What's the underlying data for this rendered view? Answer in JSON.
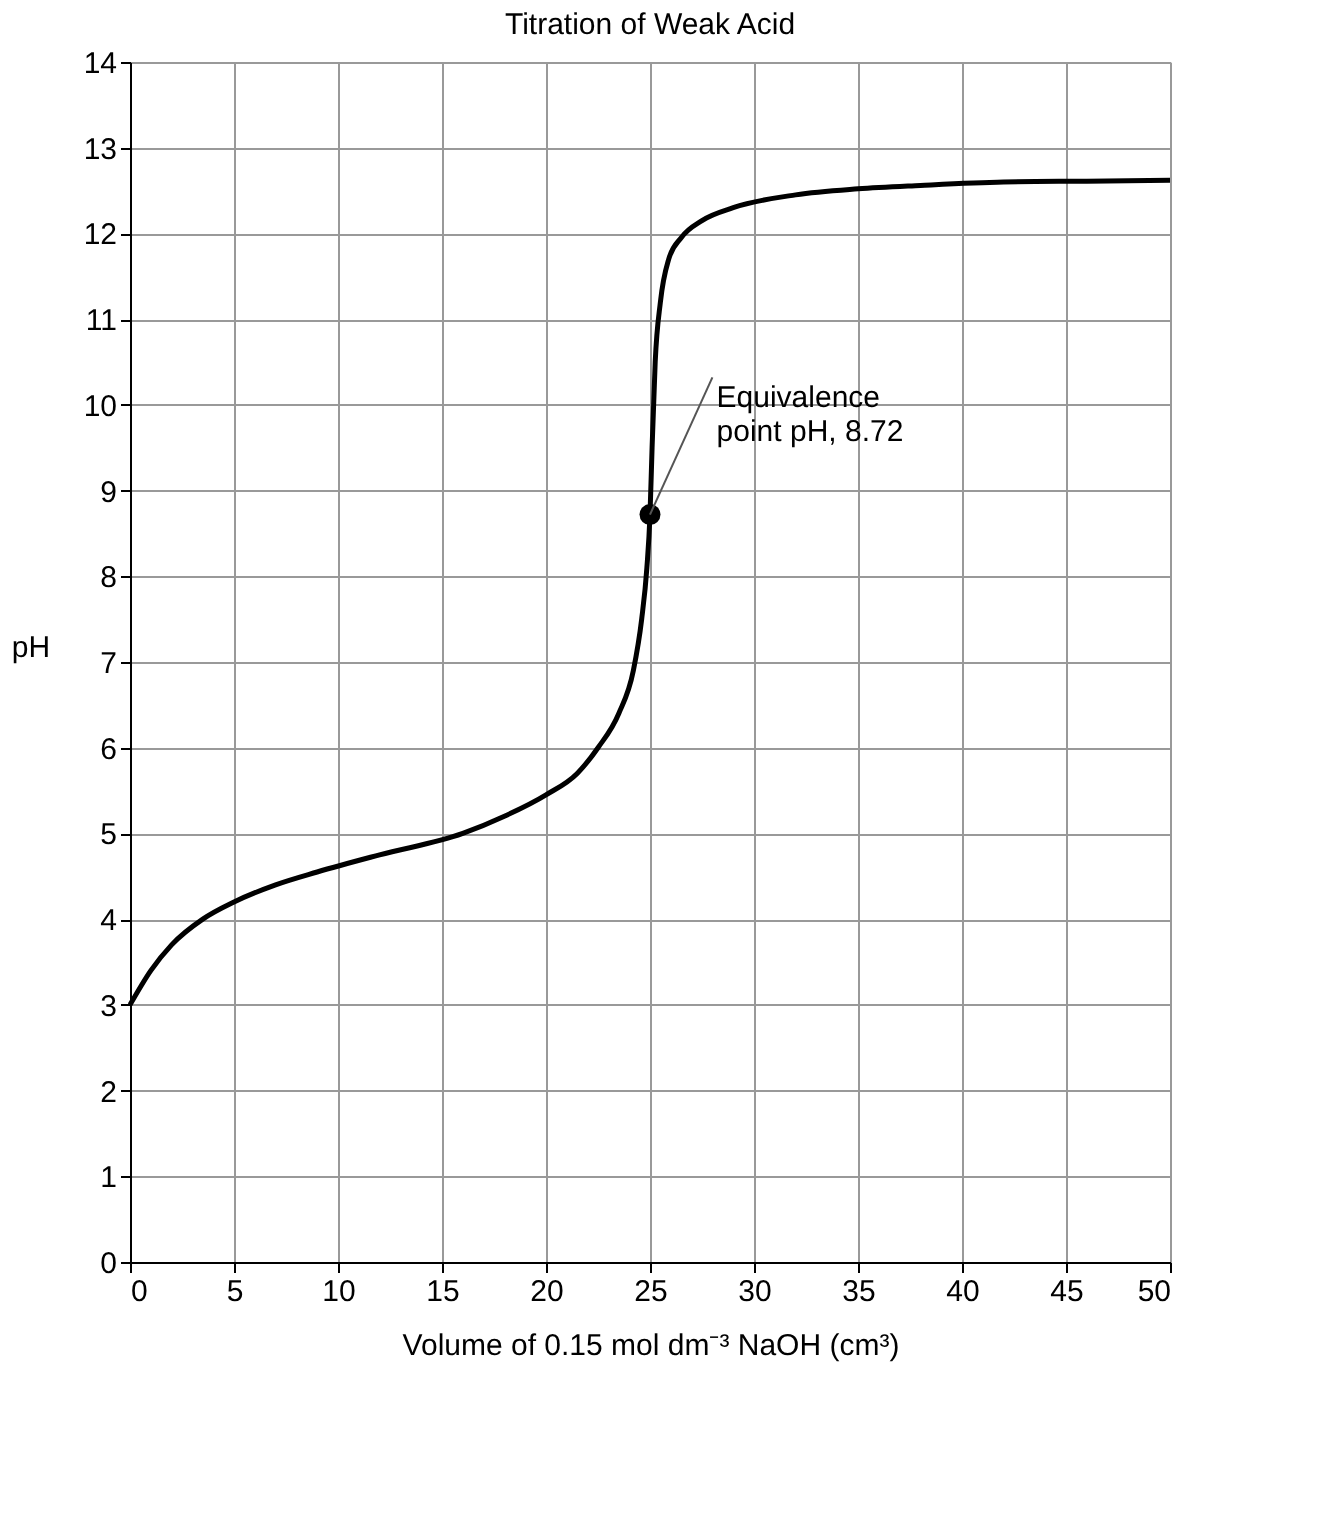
{
  "chart_data": {
    "type": "line",
    "title": "Titration of Weak Acid",
    "xlabel": "Volume of 0.15 mol dm⁻³ NaOH (cm³)",
    "ylabel": "pH",
    "xlim": [
      0,
      50
    ],
    "xticks": [
      0,
      5,
      10,
      15,
      20,
      25,
      30,
      35,
      40,
      45,
      50
    ],
    "ylim": [
      0,
      14
    ],
    "yticks": [
      0,
      1,
      2,
      3,
      4,
      5,
      6,
      7,
      8,
      9,
      10,
      11,
      12,
      13,
      14
    ],
    "grid": true,
    "series": [
      {
        "type": "line",
        "color": "#000000",
        "x": [
          0,
          1,
          2,
          3.5,
          5,
          7,
          9,
          12,
          16,
          18,
          20,
          21.5,
          22.5,
          23.5,
          24.2,
          24.6,
          24.85,
          25,
          25.1,
          25.25,
          25.5,
          25.9,
          26.5,
          27.5,
          29,
          32,
          35,
          38,
          42,
          46,
          50
        ],
        "values": [
          3,
          3.4,
          3.7,
          4,
          4.2,
          4.4,
          4.55,
          4.75,
          5,
          5.2,
          5.45,
          5.7,
          6,
          6.4,
          6.9,
          7.5,
          8.1,
          8.72,
          9.5,
          10.5,
          11.2,
          11.7,
          11.95,
          12.15,
          12.3,
          12.45,
          12.52,
          12.56,
          12.6,
          12.61,
          12.62
        ]
      },
      {
        "type": "scatter",
        "color": "#000000",
        "marker": "circle",
        "x": [
          25
        ],
        "values": [
          8.72
        ]
      }
    ],
    "annotations": [
      {
        "text": "Equivalence\npoint pH, 8.72",
        "x": 25,
        "y": 8.72
      }
    ]
  }
}
